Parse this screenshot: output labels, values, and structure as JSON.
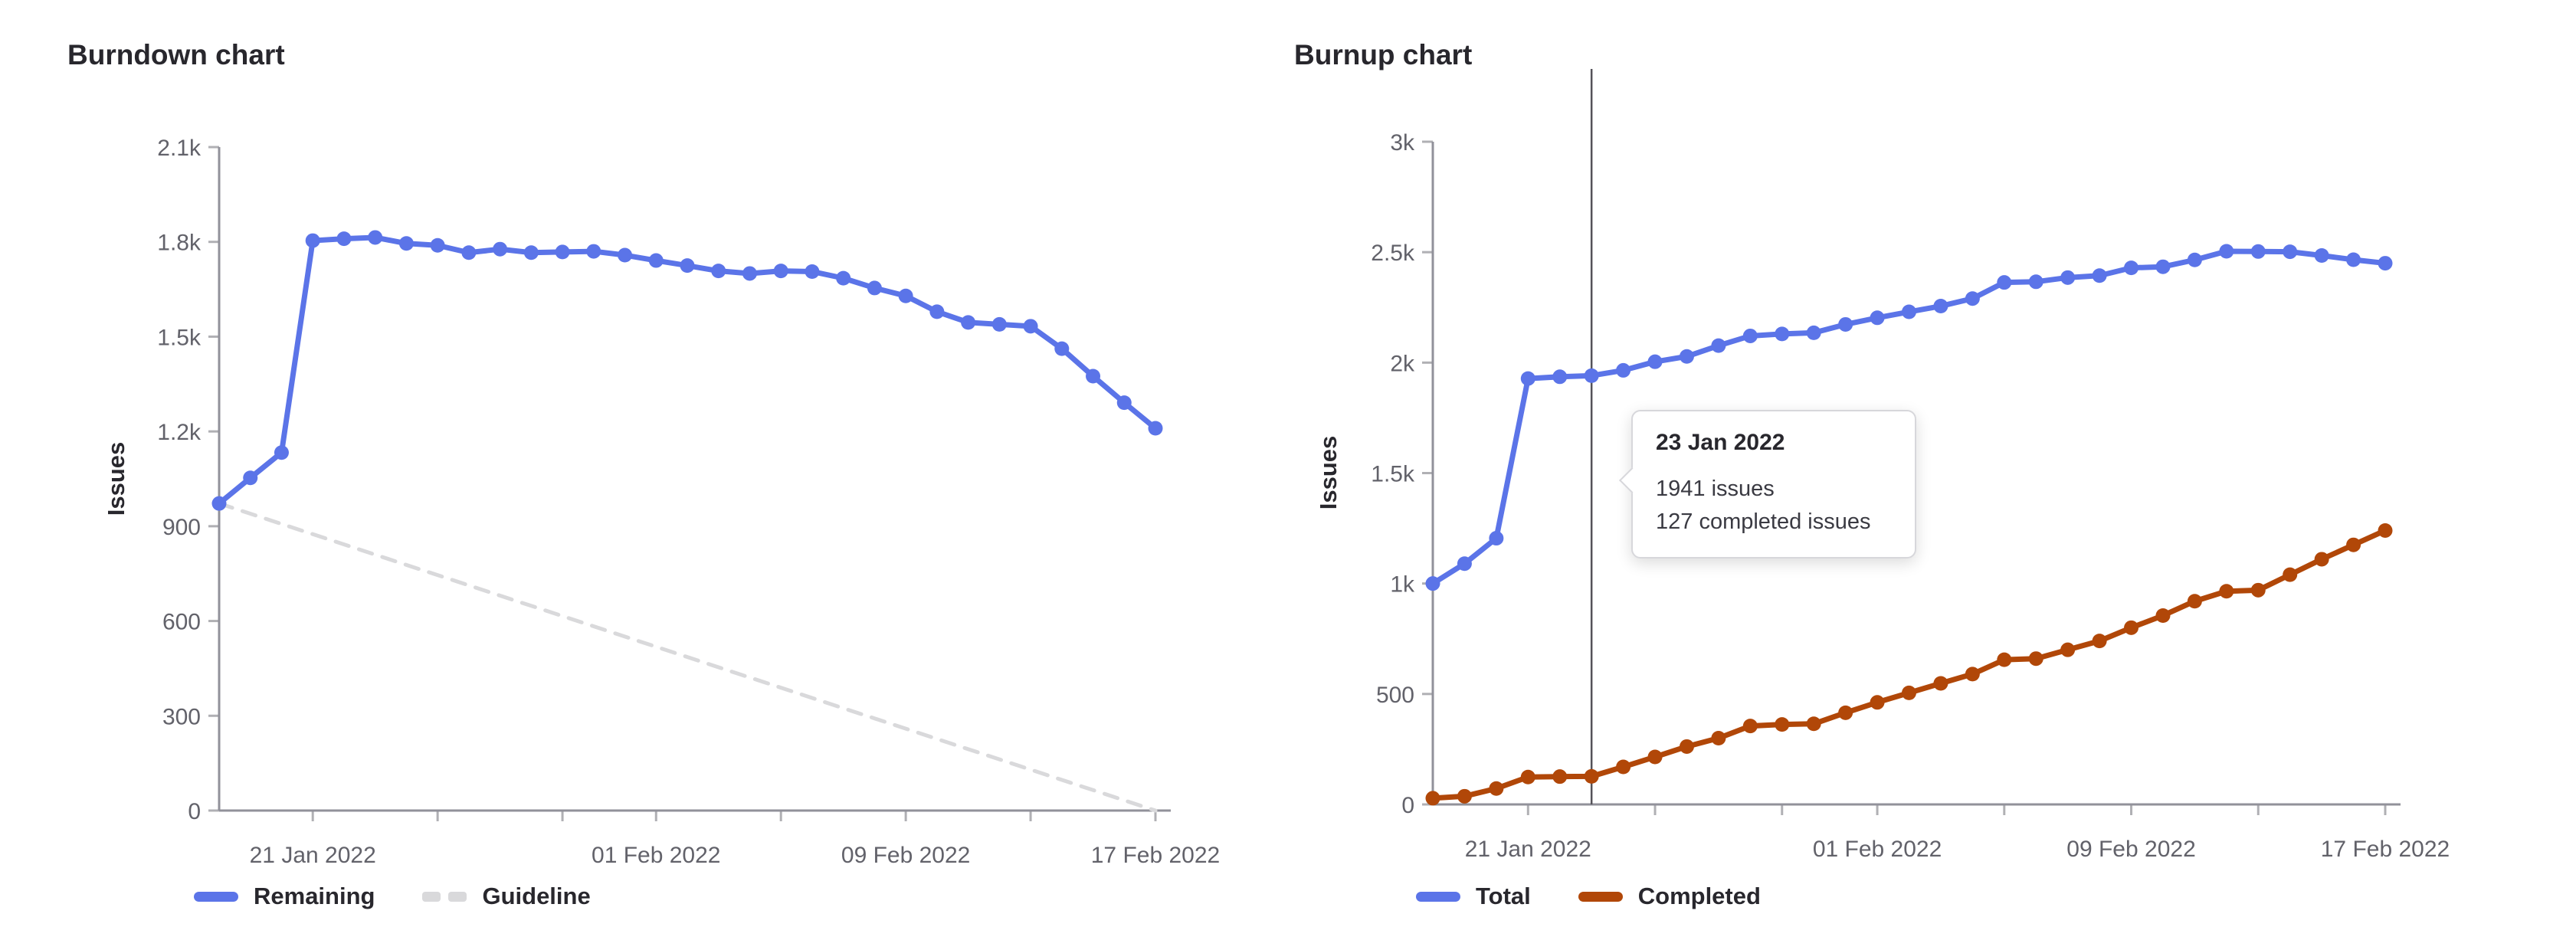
{
  "colors": {
    "blue": "#5b74e8",
    "orange": "#b14708",
    "guideline": "#d9d9db",
    "axis": "#91919a",
    "tick": "#b0b0b4",
    "tick_label": "#62626a",
    "title": "#28272d",
    "crosshair": "#545259",
    "tooltip_border": "#d7d7db"
  },
  "burndown": {
    "title": "Burndown chart",
    "y_axis_label": "Issues",
    "legend": [
      {
        "label": "Remaining",
        "type": "solid",
        "color": "#5b74e8"
      },
      {
        "label": "Guideline",
        "type": "dashed",
        "color": "#d9d9db"
      }
    ]
  },
  "burnup": {
    "title": "Burnup chart",
    "y_axis_label": "Issues",
    "legend": [
      {
        "label": "Total",
        "type": "solid",
        "color": "#5b74e8"
      },
      {
        "label": "Completed",
        "type": "solid",
        "color": "#b14708"
      }
    ],
    "tooltip": {
      "date": "23 Jan 2022",
      "lines": [
        "1941 issues",
        "127 completed issues"
      ]
    }
  },
  "chart_data": [
    {
      "type": "line",
      "title": "Burndown chart",
      "xlabel": "",
      "ylabel": "Issues",
      "ylim": [
        0,
        2100
      ],
      "grid": false,
      "legend_position": "bottom",
      "y_ticks": [
        {
          "value": 0,
          "label": "0"
        },
        {
          "value": 300,
          "label": "300"
        },
        {
          "value": 600,
          "label": "600"
        },
        {
          "value": 900,
          "label": "900"
        },
        {
          "value": 1200,
          "label": "1.2k"
        },
        {
          "value": 1500,
          "label": "1.5k"
        },
        {
          "value": 1800,
          "label": "1.8k"
        },
        {
          "value": 2100,
          "label": "2.1k"
        }
      ],
      "x": [
        "18 Jan 2022",
        "19 Jan 2022",
        "20 Jan 2022",
        "21 Jan 2022",
        "22 Jan 2022",
        "23 Jan 2022",
        "24 Jan 2022",
        "25 Jan 2022",
        "26 Jan 2022",
        "27 Jan 2022",
        "28 Jan 2022",
        "29 Jan 2022",
        "30 Jan 2022",
        "31 Jan 2022",
        "01 Feb 2022",
        "02 Feb 2022",
        "03 Feb 2022",
        "04 Feb 2022",
        "05 Feb 2022",
        "06 Feb 2022",
        "07 Feb 2022",
        "08 Feb 2022",
        "09 Feb 2022",
        "10 Feb 2022",
        "11 Feb 2022",
        "12 Feb 2022",
        "13 Feb 2022",
        "14 Feb 2022",
        "15 Feb 2022",
        "16 Feb 2022",
        "17 Feb 2022"
      ],
      "x_ticks": [
        {
          "index": 3,
          "label": "21 Jan 2022"
        },
        {
          "index": 7,
          "label": ""
        },
        {
          "index": 11,
          "label": ""
        },
        {
          "index": 14,
          "label": "01 Feb 2022"
        },
        {
          "index": 18,
          "label": ""
        },
        {
          "index": 22,
          "label": "09 Feb 2022"
        },
        {
          "index": 26,
          "label": ""
        },
        {
          "index": 30,
          "label": "17 Feb 2022"
        }
      ],
      "series": [
        {
          "name": "Remaining",
          "color": "#5b74e8",
          "dots": true,
          "values": [
            972,
            1053,
            1133,
            1804,
            1810,
            1814,
            1795,
            1789,
            1766,
            1777,
            1766,
            1768,
            1770,
            1758,
            1741,
            1725,
            1708,
            1700,
            1708,
            1706,
            1685,
            1654,
            1629,
            1579,
            1545,
            1539,
            1533,
            1462,
            1375,
            1291,
            1210
          ]
        }
      ],
      "guideline": {
        "name": "Guideline",
        "color": "#d9d9db",
        "start": 972,
        "end": 0
      }
    },
    {
      "type": "line",
      "title": "Burnup chart",
      "xlabel": "",
      "ylabel": "Issues",
      "ylim": [
        0,
        3000
      ],
      "grid": false,
      "legend_position": "bottom",
      "y_ticks": [
        {
          "value": 0,
          "label": "0"
        },
        {
          "value": 500,
          "label": "500"
        },
        {
          "value": 1000,
          "label": "1k"
        },
        {
          "value": 1500,
          "label": "1.5k"
        },
        {
          "value": 2000,
          "label": "2k"
        },
        {
          "value": 2500,
          "label": "2.5k"
        },
        {
          "value": 3000,
          "label": "3k"
        }
      ],
      "x": [
        "18 Jan 2022",
        "19 Jan 2022",
        "20 Jan 2022",
        "21 Jan 2022",
        "22 Jan 2022",
        "23 Jan 2022",
        "24 Jan 2022",
        "25 Jan 2022",
        "26 Jan 2022",
        "27 Jan 2022",
        "28 Jan 2022",
        "29 Jan 2022",
        "30 Jan 2022",
        "31 Jan 2022",
        "01 Feb 2022",
        "02 Feb 2022",
        "03 Feb 2022",
        "04 Feb 2022",
        "05 Feb 2022",
        "06 Feb 2022",
        "07 Feb 2022",
        "08 Feb 2022",
        "09 Feb 2022",
        "10 Feb 2022",
        "11 Feb 2022",
        "12 Feb 2022",
        "13 Feb 2022",
        "14 Feb 2022",
        "15 Feb 2022",
        "16 Feb 2022",
        "17 Feb 2022"
      ],
      "x_ticks": [
        {
          "index": 3,
          "label": "21 Jan 2022"
        },
        {
          "index": 7,
          "label": ""
        },
        {
          "index": 11,
          "label": ""
        },
        {
          "index": 14,
          "label": "01 Feb 2022"
        },
        {
          "index": 18,
          "label": ""
        },
        {
          "index": 22,
          "label": "09 Feb 2022"
        },
        {
          "index": 26,
          "label": ""
        },
        {
          "index": 30,
          "label": "17 Feb 2022"
        }
      ],
      "series": [
        {
          "name": "Total",
          "color": "#5b74e8",
          "dots": true,
          "values": [
            1000,
            1090,
            1205,
            1928,
            1936,
            1941,
            1965,
            2004,
            2028,
            2077,
            2121,
            2130,
            2135,
            2173,
            2203,
            2230,
            2256,
            2290,
            2363,
            2366,
            2385,
            2394,
            2429,
            2434,
            2465,
            2504,
            2503,
            2502,
            2485,
            2466,
            2450
          ]
        },
        {
          "name": "Completed",
          "color": "#b14708",
          "dots": true,
          "values": [
            28,
            37,
            72,
            124,
            126,
            127,
            170,
            215,
            262,
            300,
            355,
            362,
            365,
            415,
            462,
            505,
            548,
            590,
            655,
            660,
            700,
            740,
            800,
            855,
            920,
            965,
            970,
            1040,
            1110,
            1175,
            1240
          ]
        }
      ],
      "crosshair": {
        "index": 5,
        "date": "23 Jan 2022",
        "total": 1941,
        "completed": 127
      }
    }
  ]
}
